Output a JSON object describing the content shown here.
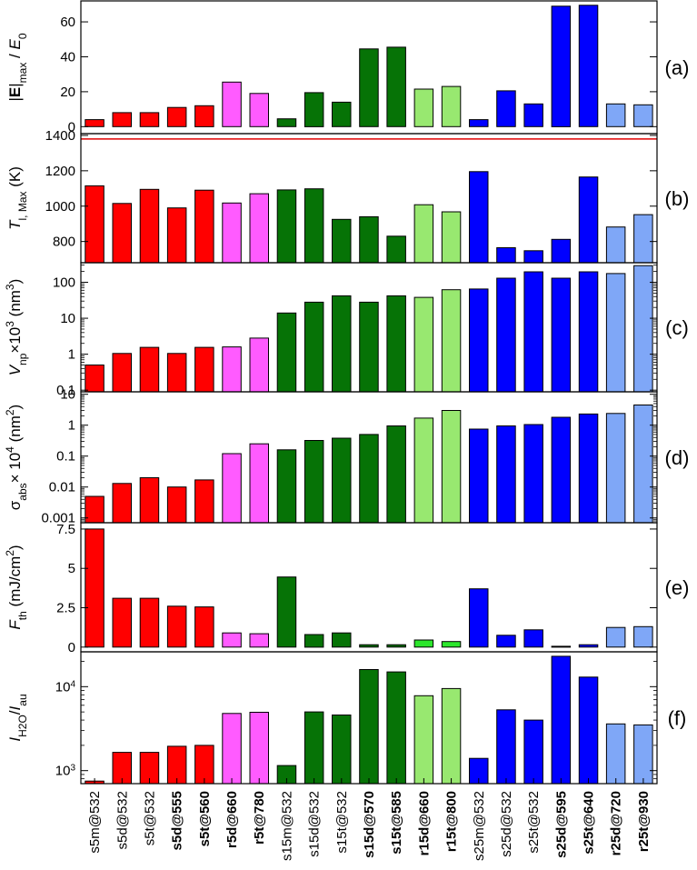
{
  "chart_data": {
    "type": "bar",
    "categories": [
      {
        "label": "s5m@532",
        "bold": false
      },
      {
        "label": "s5d@532",
        "bold": false
      },
      {
        "label": "s5t@532",
        "bold": false
      },
      {
        "label": "s5d@555",
        "bold": true
      },
      {
        "label": "s5t@560",
        "bold": true
      },
      {
        "label": "r5d@660",
        "bold": true
      },
      {
        "label": "r5t@780",
        "bold": true
      },
      {
        "label": "s15m@532",
        "bold": false
      },
      {
        "label": "s15d@532",
        "bold": false
      },
      {
        "label": "s15t@532",
        "bold": false
      },
      {
        "label": "s15d@570",
        "bold": true
      },
      {
        "label": "s15t@585",
        "bold": true
      },
      {
        "label": "r15d@660",
        "bold": true
      },
      {
        "label": "r15t@800",
        "bold": true
      },
      {
        "label": "s25m@532",
        "bold": false
      },
      {
        "label": "s25d@532",
        "bold": false
      },
      {
        "label": "s25t@532",
        "bold": false
      },
      {
        "label": "s25d@595",
        "bold": true
      },
      {
        "label": "s25t@640",
        "bold": true
      },
      {
        "label": "r25d@720",
        "bold": true
      },
      {
        "label": "r25t@930",
        "bold": true
      }
    ],
    "colors": [
      "#ff0000",
      "#ff0000",
      "#ff0000",
      "#ff0000",
      "#ff0000",
      "#ff5bff",
      "#ff5bff",
      "#067306",
      "#067306",
      "#067306",
      "#067306",
      "#067306",
      "#98e870",
      "#98e870",
      "#0000ff",
      "#0000ff",
      "#0000ff",
      "#0000ff",
      "#0000ff",
      "#7fa7f7",
      "#7fa7f7"
    ],
    "panels": [
      {
        "tag": "(a)",
        "ylabel": "|E|max / E0",
        "scale": "linear",
        "ylim": [
          -4,
          72
        ],
        "ticks": [
          0,
          20,
          40,
          60
        ],
        "tick_labels": [
          "0",
          "20",
          "40",
          "60"
        ],
        "values": [
          4,
          8,
          8,
          11,
          12,
          25.5,
          19,
          4.5,
          19.5,
          14,
          44.5,
          45.5,
          21.5,
          23,
          4,
          20.5,
          13,
          69,
          69.5,
          13,
          12.5
        ]
      },
      {
        "tag": "(b)",
        "ylabel": "T l, Max (K)",
        "scale": "linear",
        "ylim": [
          680,
          1410
        ],
        "ticks": [
          800,
          1000,
          1200,
          1400
        ],
        "tick_labels": [
          "800",
          "1000",
          "1200",
          "1400"
        ],
        "reference_line": 1380,
        "values": [
          1115,
          1015,
          1095,
          990,
          1090,
          1018,
          1070,
          1092,
          1098,
          925,
          940,
          830,
          1008,
          968,
          1195,
          765,
          748,
          812,
          1165,
          882,
          952
        ]
      },
      {
        "tag": "(c)",
        "ylabel": "Vnp × 10^3 (nm^3)",
        "scale": "log",
        "ylim": [
          0.09,
          350
        ],
        "ticks": [
          0.1,
          1,
          10,
          100
        ],
        "tick_labels": [
          "0.1",
          "1",
          "10",
          "100"
        ],
        "values": [
          0.5,
          1.05,
          1.55,
          1.05,
          1.55,
          1.6,
          2.8,
          14,
          28,
          42,
          28,
          42,
          38,
          62,
          65,
          130,
          195,
          130,
          195,
          175,
          290
        ]
      },
      {
        "tag": "(d)",
        "ylabel": "σabs × 10^4 (nm^2)",
        "scale": "log",
        "ylim": [
          0.0007,
          12
        ],
        "ticks": [
          0.001,
          0.01,
          0.1,
          1,
          10
        ],
        "tick_labels": [
          "0.001",
          "0.01",
          "0.1",
          "1",
          "10"
        ],
        "values": [
          0.005,
          0.013,
          0.02,
          0.01,
          0.017,
          0.12,
          0.25,
          0.16,
          0.32,
          0.38,
          0.5,
          0.95,
          1.7,
          3.0,
          0.75,
          0.95,
          1.05,
          1.8,
          2.3,
          2.4,
          4.5
        ]
      },
      {
        "tag": "(e)",
        "ylabel": "Fth (mJ/cm^2)",
        "scale": "linear",
        "ylim": [
          -0.3,
          7.9
        ],
        "ticks": [
          0,
          2.5,
          5,
          7.5
        ],
        "tick_labels": [
          "0",
          "2.5",
          "5",
          "7.5"
        ],
        "bright_override": {
          "12": "#2ce62c",
          "13": "#2ce62c"
        },
        "values": [
          7.5,
          3.1,
          3.1,
          2.6,
          2.55,
          0.9,
          0.85,
          4.45,
          0.8,
          0.9,
          0.15,
          0.15,
          0.45,
          0.35,
          3.7,
          0.75,
          1.1,
          0.05,
          0.15,
          1.25,
          1.3
        ]
      },
      {
        "tag": "(f)",
        "ylabel": "IH2O / Iau",
        "scale": "log",
        "ylim": [
          700,
          26000
        ],
        "ticks": [
          1000,
          10000
        ],
        "tick_labels": [
          "10^3",
          "10^4"
        ],
        "values": [
          750,
          1650,
          1650,
          1950,
          2000,
          4800,
          4950,
          1150,
          5000,
          4600,
          16000,
          15000,
          7800,
          9500,
          1400,
          5300,
          4000,
          23000,
          13000,
          3600,
          3500
        ]
      }
    ]
  }
}
